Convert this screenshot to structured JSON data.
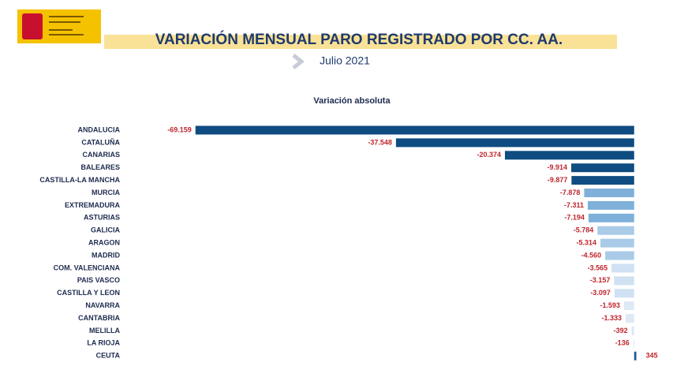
{
  "header": {
    "title": "VARIACIÓN MENSUAL PARO REGISTRADO POR CC. AA.",
    "subtitle": "Julio 2021"
  },
  "chart_data": {
    "type": "bar",
    "orientation": "horizontal",
    "title": "Variación absoluta",
    "categories": [
      "ANDALUCIA",
      "CATALUÑA",
      "CANARIAS",
      "BALEARES",
      "CASTILLA-LA MANCHA",
      "MURCIA",
      "EXTREMADURA",
      "ASTURIAS",
      "GALICIA",
      "ARAGON",
      "MADRID",
      "COM. VALENCIANA",
      "PAIS VASCO",
      "CASTILLA Y LEON",
      "NAVARRA",
      "CANTABRIA",
      "MELILLA",
      "LA RIOJA",
      "CEUTA"
    ],
    "values": [
      -69159,
      -37548,
      -20374,
      -9914,
      -9877,
      -7878,
      -7311,
      -7194,
      -5784,
      -5314,
      -4560,
      -3565,
      -3157,
      -3097,
      -1593,
      -1333,
      -392,
      -136,
      345
    ],
    "value_labels": [
      "-69.159",
      "-37.548",
      "-20.374",
      "-9.914",
      "-9.877",
      "-7.878",
      "-7.311",
      "-7.194",
      "-5.784",
      "-5.314",
      "-4.560",
      "-3.565",
      "-3.157",
      "-3.097",
      "-1.593",
      "-1.333",
      "-392",
      "-136",
      "345"
    ],
    "colors": [
      "#0f4c81",
      "#0f4c81",
      "#0f4c81",
      "#0f4c81",
      "#0f4c81",
      "#7fb0da",
      "#7fb0da",
      "#7fb0da",
      "#a9cbe8",
      "#a9cbe8",
      "#a9cbe8",
      "#cfe1f2",
      "#cfe1f2",
      "#cfe1f2",
      "#dde9f5",
      "#dde9f5",
      "#dde9f5",
      "#dde9f5",
      "#1f5a94"
    ],
    "xlim": [
      -70000,
      5000
    ]
  }
}
